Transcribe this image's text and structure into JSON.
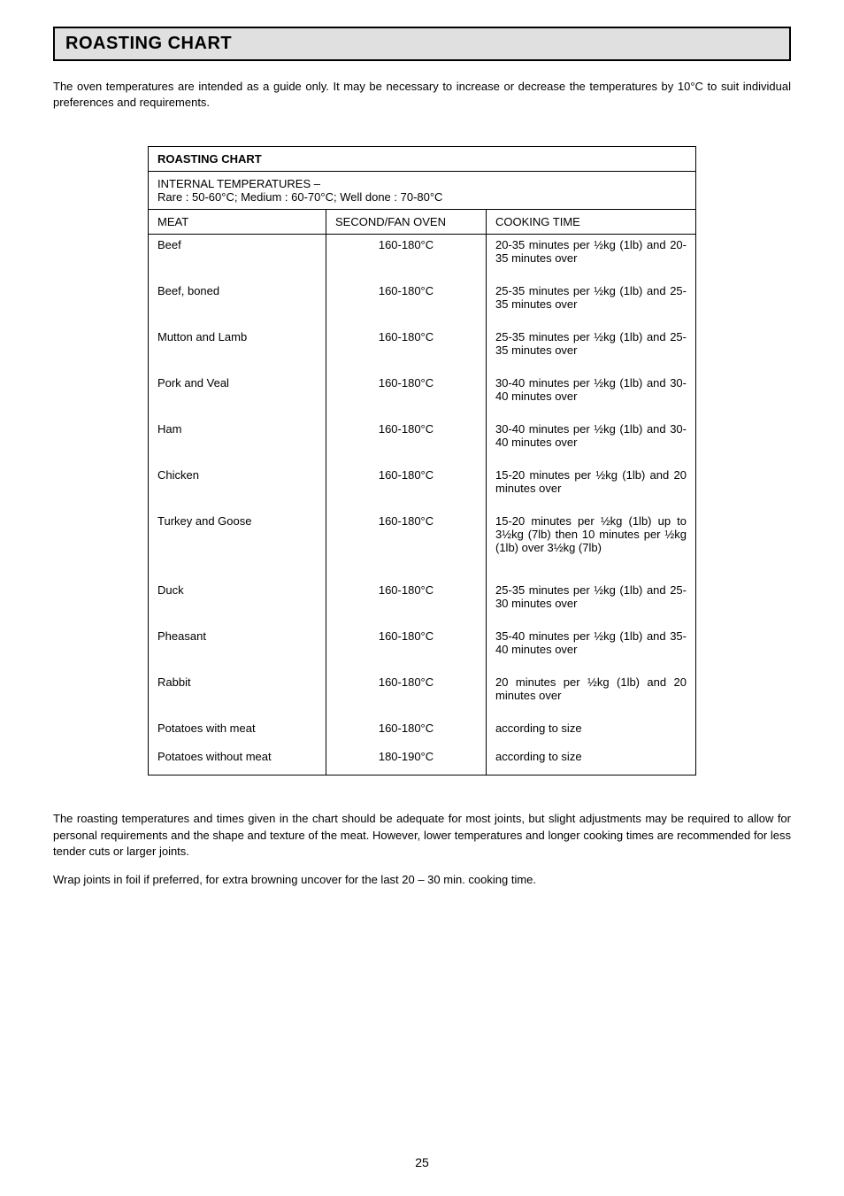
{
  "title": "ROASTING CHART",
  "intro": "The oven temperatures are intended as a guide only. It may be necessary to increase or decrease the temperatures by 10°C to suit individual preferences and requirements.",
  "chart": {
    "heading": "ROASTING CHART",
    "internalTemps": {
      "label": "INTERNAL TEMPERATURES –",
      "detail": "Rare : 50-60°C; Medium : 60-70°C; Well done : 70-80°C"
    },
    "columns": {
      "meat": "MEAT",
      "oven": "SECOND/FAN OVEN",
      "time": "COOKING TIME"
    },
    "rows": [
      {
        "meat": "Beef",
        "oven": "160-180°C",
        "time": "20-35 minutes per ½kg (1lb) and 20-35 minutes over"
      },
      {
        "meat": "Beef, boned",
        "oven": "160-180°C",
        "time": "25-35 minutes per ½kg (1lb) and 25-35 minutes over"
      },
      {
        "meat": "Mutton and Lamb",
        "oven": "160-180°C",
        "time": "25-35 minutes per ½kg (1lb) and 25-35 minutes over"
      },
      {
        "meat": "Pork and Veal",
        "oven": "160-180°C",
        "time": "30-40 minutes per ½kg (1lb) and 30-40 minutes over"
      },
      {
        "meat": "Ham",
        "oven": "160-180°C",
        "time": "30-40 minutes per ½kg (1lb) and 30-40 minutes over"
      },
      {
        "meat": "Chicken",
        "oven": "160-180°C",
        "time": "15-20 minutes per ½kg (1lb) and 20 minutes over"
      },
      {
        "meat": "Turkey and Goose",
        "oven": "160-180°C",
        "time": "15-20 minutes per ½kg (1lb) up to 3½kg (7lb) then 10 minutes per ½kg (1lb) over 3½kg (7lb)"
      },
      {
        "meat": "Duck",
        "oven": "160-180°C",
        "time": "25-35 minutes per ½kg (1lb) and 25-30 minutes over"
      },
      {
        "meat": "Pheasant",
        "oven": "160-180°C",
        "time": "35-40 minutes per ½kg (1lb) and 35-40 minutes over"
      },
      {
        "meat": "Rabbit",
        "oven": "160-180°C",
        "time": "20 minutes per ½kg (1lb) and 20 minutes over"
      },
      {
        "meat": "Potatoes with meat",
        "oven": "160-180°C",
        "time": "according to size"
      },
      {
        "meat": "Potatoes without meat",
        "oven": "180-190°C",
        "time": "according to size"
      }
    ]
  },
  "footer1": "The roasting temperatures and times given in the chart should be adequate for most joints, but slight adjustments may be required to allow for personal requirements and the shape and texture of the meat.  However, lower temperatures and longer cooking times are recommended for less tender cuts or larger joints.",
  "footer2": "Wrap joints in foil if preferred, for extra browning uncover for the last 20 – 30 min. cooking time.",
  "pageNumber": "25",
  "style": {
    "backgroundColor": "#ffffff",
    "titleBarBg": "#e0e0e0",
    "borderColor": "#000000",
    "textColor": "#000000",
    "fontFamily": "Arial, Helvetica, sans-serif",
    "bodyFontSize": 13,
    "titleFontSize": 20,
    "tableWidth": 620
  }
}
